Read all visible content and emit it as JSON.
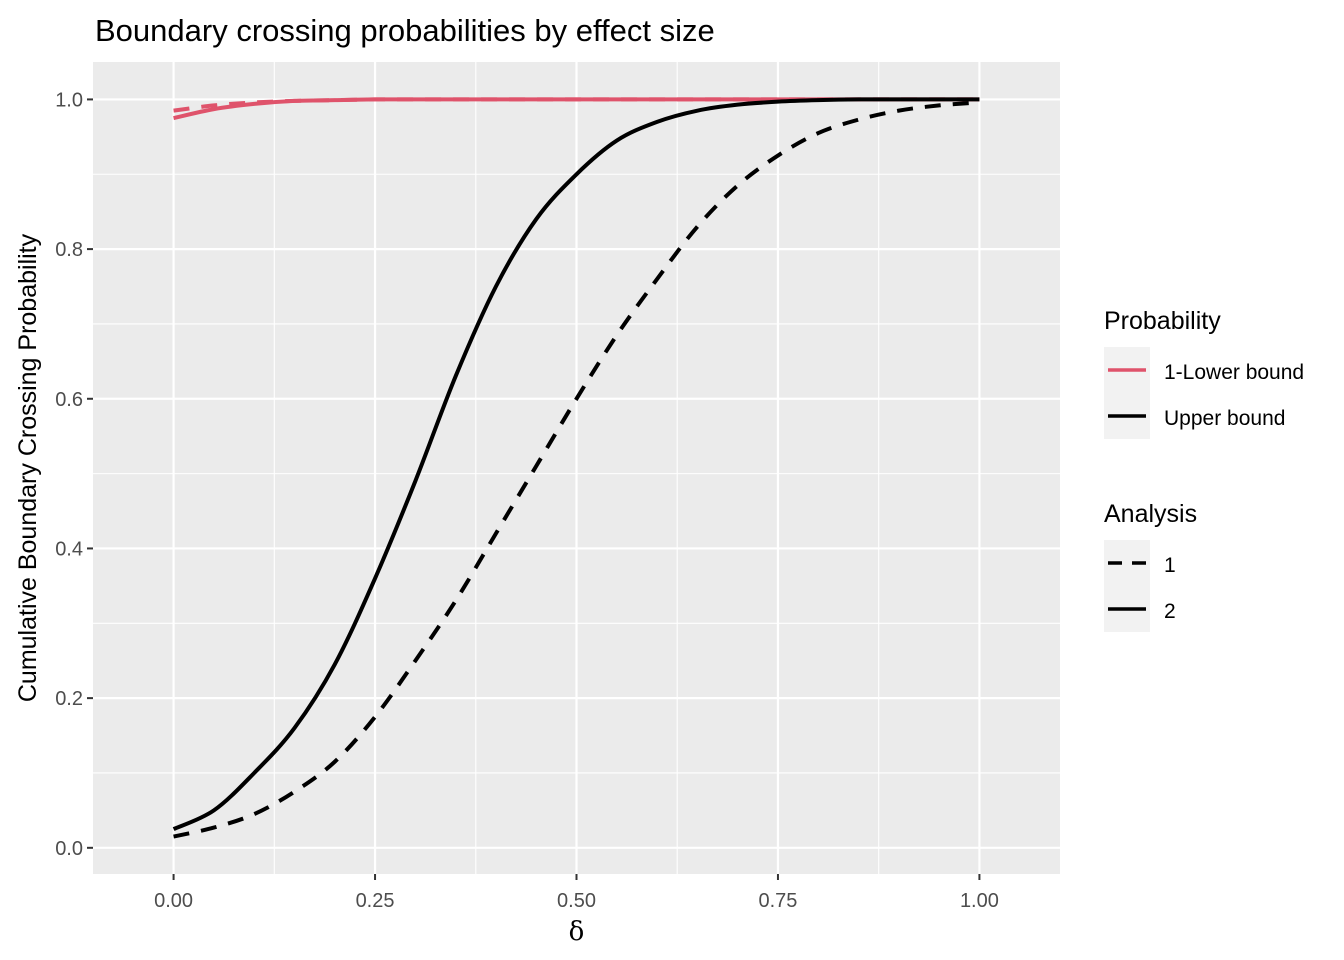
{
  "chart_data": {
    "type": "line",
    "title": "Boundary crossing probabilities by effect size",
    "xlabel": "δ",
    "ylabel": "Cumulative Boundary Crossing Probability",
    "xlim": [
      -0.1,
      1.1
    ],
    "ylim": [
      -0.035,
      1.05
    ],
    "x_ticks": [
      0,
      0.25,
      0.5,
      0.75,
      1
    ],
    "x_tick_labels": [
      "0.00",
      "0.25",
      "0.50",
      "0.75",
      "1.00"
    ],
    "y_ticks": [
      0,
      0.2,
      0.4,
      0.6,
      0.8,
      1
    ],
    "y_tick_labels": [
      "0.0",
      "0.2",
      "0.4",
      "0.6",
      "0.8",
      "1.0"
    ],
    "grid": true,
    "legend_position": "right",
    "colors": {
      "lower": "#DF536B",
      "upper": "#000000",
      "panel": "#EBEBEB",
      "grid": "#FFFFFF"
    },
    "legend": {
      "probability": {
        "title": "Probability",
        "items": [
          "1-Lower bound",
          "Upper bound"
        ]
      },
      "analysis": {
        "title": "Analysis",
        "items": [
          "1",
          "2"
        ]
      }
    },
    "x": [
      0,
      0.05,
      0.1,
      0.15,
      0.2,
      0.25,
      0.3,
      0.35,
      0.4,
      0.45,
      0.5,
      0.55,
      0.6,
      0.65,
      0.7,
      0.75,
      0.8,
      0.85,
      0.9,
      0.95,
      1
    ],
    "series": [
      {
        "name": "Upper bound",
        "analysis": "1",
        "probability": "Upper bound",
        "values": [
          0.015,
          0.027,
          0.045,
          0.075,
          0.115,
          0.175,
          0.25,
          0.33,
          0.42,
          0.51,
          0.6,
          0.685,
          0.76,
          0.83,
          0.885,
          0.925,
          0.955,
          0.973,
          0.985,
          0.992,
          0.996
        ]
      },
      {
        "name": "Upper bound",
        "analysis": "2",
        "probability": "Upper bound",
        "values": [
          0.025,
          0.05,
          0.1,
          0.16,
          0.245,
          0.36,
          0.49,
          0.63,
          0.75,
          0.84,
          0.9,
          0.945,
          0.97,
          0.985,
          0.993,
          0.997,
          0.999,
          1.0,
          1.0,
          1.0,
          1.0
        ]
      },
      {
        "name": "1-Lower bound",
        "analysis": "1",
        "probability": "1-Lower bound",
        "values": [
          0.985,
          0.992,
          0.996,
          0.998,
          0.999,
          1.0,
          1.0,
          1.0,
          1.0,
          1.0,
          1.0,
          1.0,
          1.0,
          1.0,
          1.0,
          1.0,
          1.0,
          1.0,
          1.0,
          1.0,
          1.0
        ]
      },
      {
        "name": "1-Lower bound",
        "analysis": "2",
        "probability": "1-Lower bound",
        "values": [
          0.975,
          0.987,
          0.994,
          0.998,
          0.999,
          1.0,
          1.0,
          1.0,
          1.0,
          1.0,
          1.0,
          1.0,
          1.0,
          1.0,
          1.0,
          1.0,
          1.0,
          1.0,
          1.0,
          1.0,
          1.0
        ]
      }
    ]
  }
}
